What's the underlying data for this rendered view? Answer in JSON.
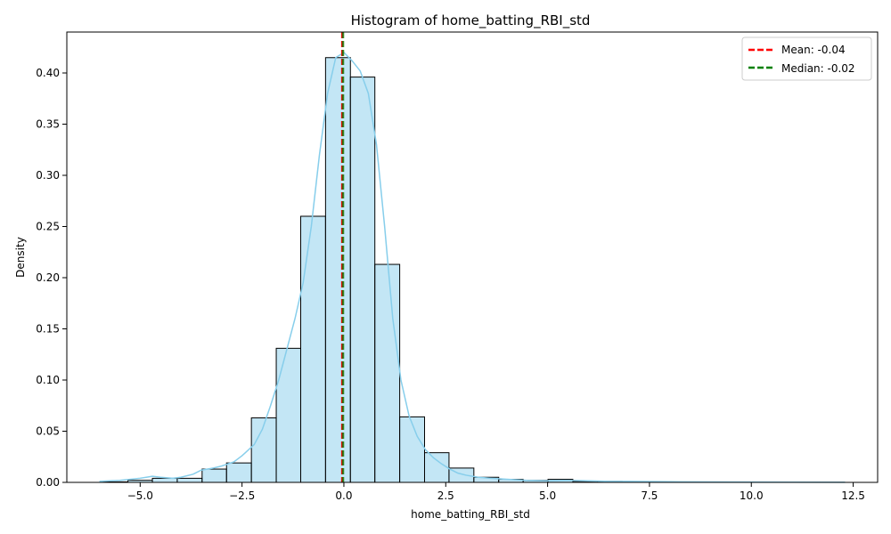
{
  "chart_data": {
    "type": "bar",
    "title": "Histogram of home_batting_RBI_std",
    "xlabel": "home_batting_RBI_std",
    "ylabel": "Density",
    "xlim": [
      -6.8,
      13.1
    ],
    "ylim": [
      0,
      0.44
    ],
    "x_ticks": [
      -5.0,
      -2.5,
      0.0,
      2.5,
      5.0,
      7.5,
      10.0,
      12.5
    ],
    "x_tick_labels": [
      "−5.0",
      "−2.5",
      "0.0",
      "2.5",
      "5.0",
      "7.5",
      "10.0",
      "12.5"
    ],
    "y_ticks": [
      0.0,
      0.05,
      0.1,
      0.15,
      0.2,
      0.25,
      0.3,
      0.35,
      0.4
    ],
    "y_tick_labels": [
      "0.00",
      "0.05",
      "0.10",
      "0.15",
      "0.20",
      "0.25",
      "0.30",
      "0.35",
      "0.40"
    ],
    "bins": {
      "edges": [
        -5.91,
        -5.3,
        -4.7,
        -4.09,
        -3.48,
        -2.88,
        -2.27,
        -1.66,
        -1.06,
        -0.45,
        0.16,
        0.76,
        1.37,
        1.98,
        2.58,
        3.19,
        3.8,
        4.4,
        5.01,
        5.62,
        6.22,
        6.83,
        7.44,
        8.04,
        8.65,
        9.26,
        9.86,
        10.47,
        11.08,
        11.68,
        12.29
      ],
      "values": [
        0.0005,
        0.002,
        0.004,
        0.004,
        0.013,
        0.019,
        0.063,
        0.131,
        0.26,
        0.415,
        0.396,
        0.213,
        0.064,
        0.029,
        0.014,
        0.005,
        0.003,
        0.002,
        0.003,
        0.001,
        0.001,
        0.0005,
        0.0005,
        0.0003,
        0.0002,
        0.0002,
        0.0001,
        0.0001,
        0.0001,
        0.0001
      ],
      "fill_color": "#87ceeb",
      "edge_color": "#000000"
    },
    "kde": {
      "x": [
        -6.0,
        -5.5,
        -5.0,
        -4.7,
        -4.5,
        -4.2,
        -4.0,
        -3.7,
        -3.5,
        -3.2,
        -3.0,
        -2.7,
        -2.5,
        -2.2,
        -2.0,
        -1.8,
        -1.6,
        -1.4,
        -1.2,
        -1.0,
        -0.8,
        -0.6,
        -0.4,
        -0.2,
        0.0,
        0.2,
        0.4,
        0.6,
        0.8,
        1.0,
        1.2,
        1.4,
        1.6,
        1.8,
        2.0,
        2.2,
        2.4,
        2.6,
        2.8,
        3.0,
        3.3,
        3.6,
        4.0,
        4.5,
        5.0,
        5.5,
        6.0,
        6.5,
        7.0,
        8.0,
        9.0,
        10.0,
        11.0,
        12.3
      ],
      "y": [
        0.001,
        0.002,
        0.004,
        0.006,
        0.005,
        0.004,
        0.005,
        0.008,
        0.012,
        0.014,
        0.016,
        0.02,
        0.026,
        0.037,
        0.052,
        0.075,
        0.1,
        0.13,
        0.16,
        0.195,
        0.25,
        0.32,
        0.38,
        0.415,
        0.42,
        0.412,
        0.402,
        0.38,
        0.33,
        0.25,
        0.16,
        0.1,
        0.065,
        0.045,
        0.032,
        0.024,
        0.018,
        0.013,
        0.009,
        0.007,
        0.005,
        0.004,
        0.003,
        0.002,
        0.0015,
        0.002,
        0.0015,
        0.001,
        0.001,
        0.0006,
        0.0004,
        0.0003,
        0.0002,
        0.0001
      ],
      "color": "#87ceeb"
    },
    "lines": [
      {
        "name": "Mean: -0.04",
        "x": -0.04,
        "color": "#ff0000"
      },
      {
        "name": "Median: -0.02",
        "x": -0.02,
        "color": "#008000"
      }
    ],
    "legend_position": "top-right",
    "grid": false
  }
}
